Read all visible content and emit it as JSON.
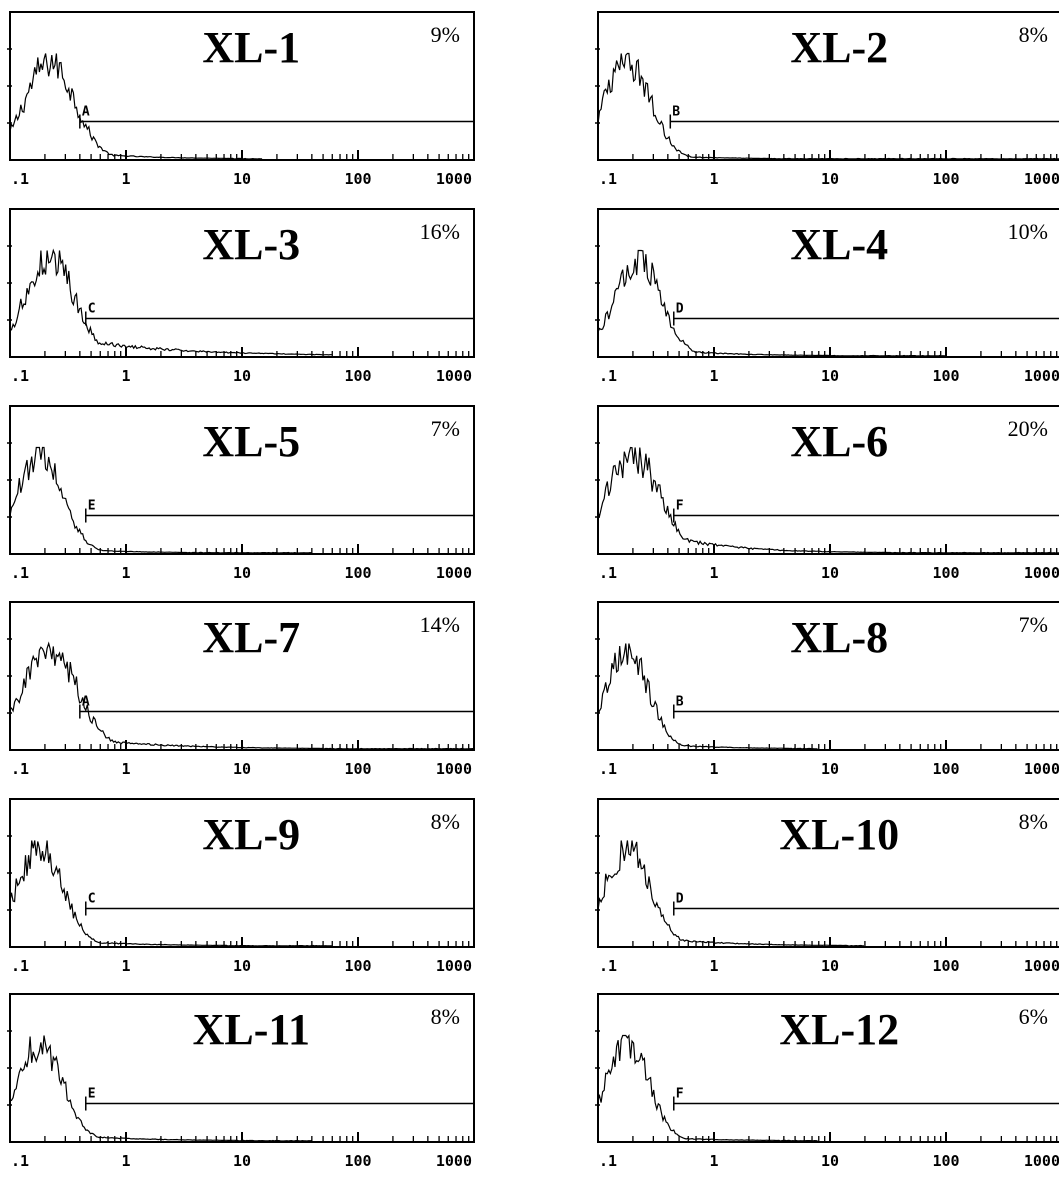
{
  "chart_data": [
    {
      "type": "line",
      "title": "XL-1",
      "percent": "9%",
      "gate_label": "A",
      "gate_start": 0.4,
      "peak": 0.22,
      "width": 0.3,
      "tail": 0.1,
      "tail_decay": 0.55,
      "max_x": 15,
      "x_ticks": [
        ".1",
        "1",
        "10",
        "100",
        "1000"
      ],
      "xlim": [
        0.1,
        1000
      ],
      "x_scale": "log"
    },
    {
      "type": "line",
      "title": "XL-2",
      "percent": "8%",
      "gate_label": "B",
      "gate_start": 0.42,
      "peak": 0.18,
      "width": 0.28,
      "tail": 0.06,
      "tail_decay": 0.5,
      "max_x": 1000,
      "x_ticks": [
        ".1",
        "1",
        "10",
        "100",
        "1000"
      ],
      "xlim": [
        0.1,
        1000
      ],
      "x_scale": "log"
    },
    {
      "type": "line",
      "title": "XL-3",
      "percent": "16%",
      "gate_label": "C",
      "gate_start": 0.45,
      "peak": 0.22,
      "width": 0.3,
      "tail": 0.22,
      "tail_decay": 0.85,
      "max_x": 60,
      "x_ticks": [
        ".1",
        "1",
        "10",
        "100",
        "1000"
      ],
      "xlim": [
        0.1,
        1000
      ],
      "x_scale": "log"
    },
    {
      "type": "line",
      "title": "XL-4",
      "percent": "10%",
      "gate_label": "D",
      "gate_start": 0.45,
      "peak": 0.22,
      "width": 0.28,
      "tail": 0.1,
      "tail_decay": 0.55,
      "max_x": 100,
      "x_ticks": [
        ".1",
        "1",
        "10",
        "100",
        "1000"
      ],
      "xlim": [
        0.1,
        1000
      ],
      "x_scale": "log"
    },
    {
      "type": "line",
      "title": "XL-5",
      "percent": "7%",
      "gate_label": "E",
      "gate_start": 0.45,
      "peak": 0.18,
      "width": 0.28,
      "tail": 0.06,
      "tail_decay": 0.55,
      "max_x": 40,
      "x_ticks": [
        ".1",
        "1",
        "10",
        "100",
        "1000"
      ],
      "xlim": [
        0.1,
        1000
      ],
      "x_scale": "log"
    },
    {
      "type": "line",
      "title": "XL-6",
      "percent": "20%",
      "gate_label": "F",
      "gate_start": 0.45,
      "peak": 0.2,
      "width": 0.32,
      "tail": 0.3,
      "tail_decay": 0.55,
      "max_x": 1000,
      "x_ticks": [
        ".1",
        "1",
        "10",
        "100",
        "1000"
      ],
      "xlim": [
        0.1,
        1000
      ],
      "x_scale": "log"
    },
    {
      "type": "line",
      "title": "XL-7",
      "percent": "14%",
      "gate_label": "A",
      "gate_start": 0.4,
      "peak": 0.22,
      "width": 0.34,
      "tail": 0.16,
      "tail_decay": 0.7,
      "max_x": 1000,
      "x_ticks": [
        ".1",
        "1",
        "10",
        "100",
        "1000"
      ],
      "xlim": [
        0.1,
        1000
      ],
      "x_scale": "log"
    },
    {
      "type": "line",
      "title": "XL-8",
      "percent": "7%",
      "gate_label": "B",
      "gate_start": 0.45,
      "peak": 0.18,
      "width": 0.26,
      "tail": 0.08,
      "tail_decay": 0.55,
      "max_x": 8,
      "x_ticks": [
        ".1",
        "1",
        "10",
        "100",
        "1000"
      ],
      "xlim": [
        0.1,
        1000
      ],
      "x_scale": "log"
    },
    {
      "type": "line",
      "title": "XL-9",
      "percent": "8%",
      "gate_label": "C",
      "gate_start": 0.45,
      "peak": 0.18,
      "width": 0.28,
      "tail": 0.08,
      "tail_decay": 0.6,
      "max_x": 60,
      "x_ticks": [
        ".1",
        "1",
        "10",
        "100",
        "1000"
      ],
      "xlim": [
        0.1,
        1000
      ],
      "x_scale": "log"
    },
    {
      "type": "line",
      "title": "XL-10",
      "percent": "8%",
      "gate_label": "D",
      "gate_start": 0.45,
      "peak": 0.18,
      "width": 0.28,
      "tail": 0.12,
      "tail_decay": 0.6,
      "max_x": 20,
      "x_ticks": [
        ".1",
        "1",
        "10",
        "100",
        "1000"
      ],
      "xlim": [
        0.1,
        1000
      ],
      "x_scale": "log"
    },
    {
      "type": "line",
      "title": "XL-11",
      "percent": "8%",
      "gate_label": "E",
      "gate_start": 0.45,
      "peak": 0.18,
      "width": 0.28,
      "tail": 0.08,
      "tail_decay": 0.65,
      "max_x": 40,
      "x_ticks": [
        ".1",
        "1",
        "10",
        "100",
        "1000"
      ],
      "xlim": [
        0.1,
        1000
      ],
      "x_scale": "log"
    },
    {
      "type": "line",
      "title": "XL-12",
      "percent": "6%",
      "gate_label": "F",
      "gate_start": 0.45,
      "peak": 0.18,
      "width": 0.26,
      "tail": 0.06,
      "tail_decay": 0.55,
      "max_x": 8,
      "x_ticks": [
        ".1",
        "1",
        "10",
        "100",
        "1000"
      ],
      "xlim": [
        0.1,
        1000
      ],
      "x_scale": "log"
    }
  ]
}
